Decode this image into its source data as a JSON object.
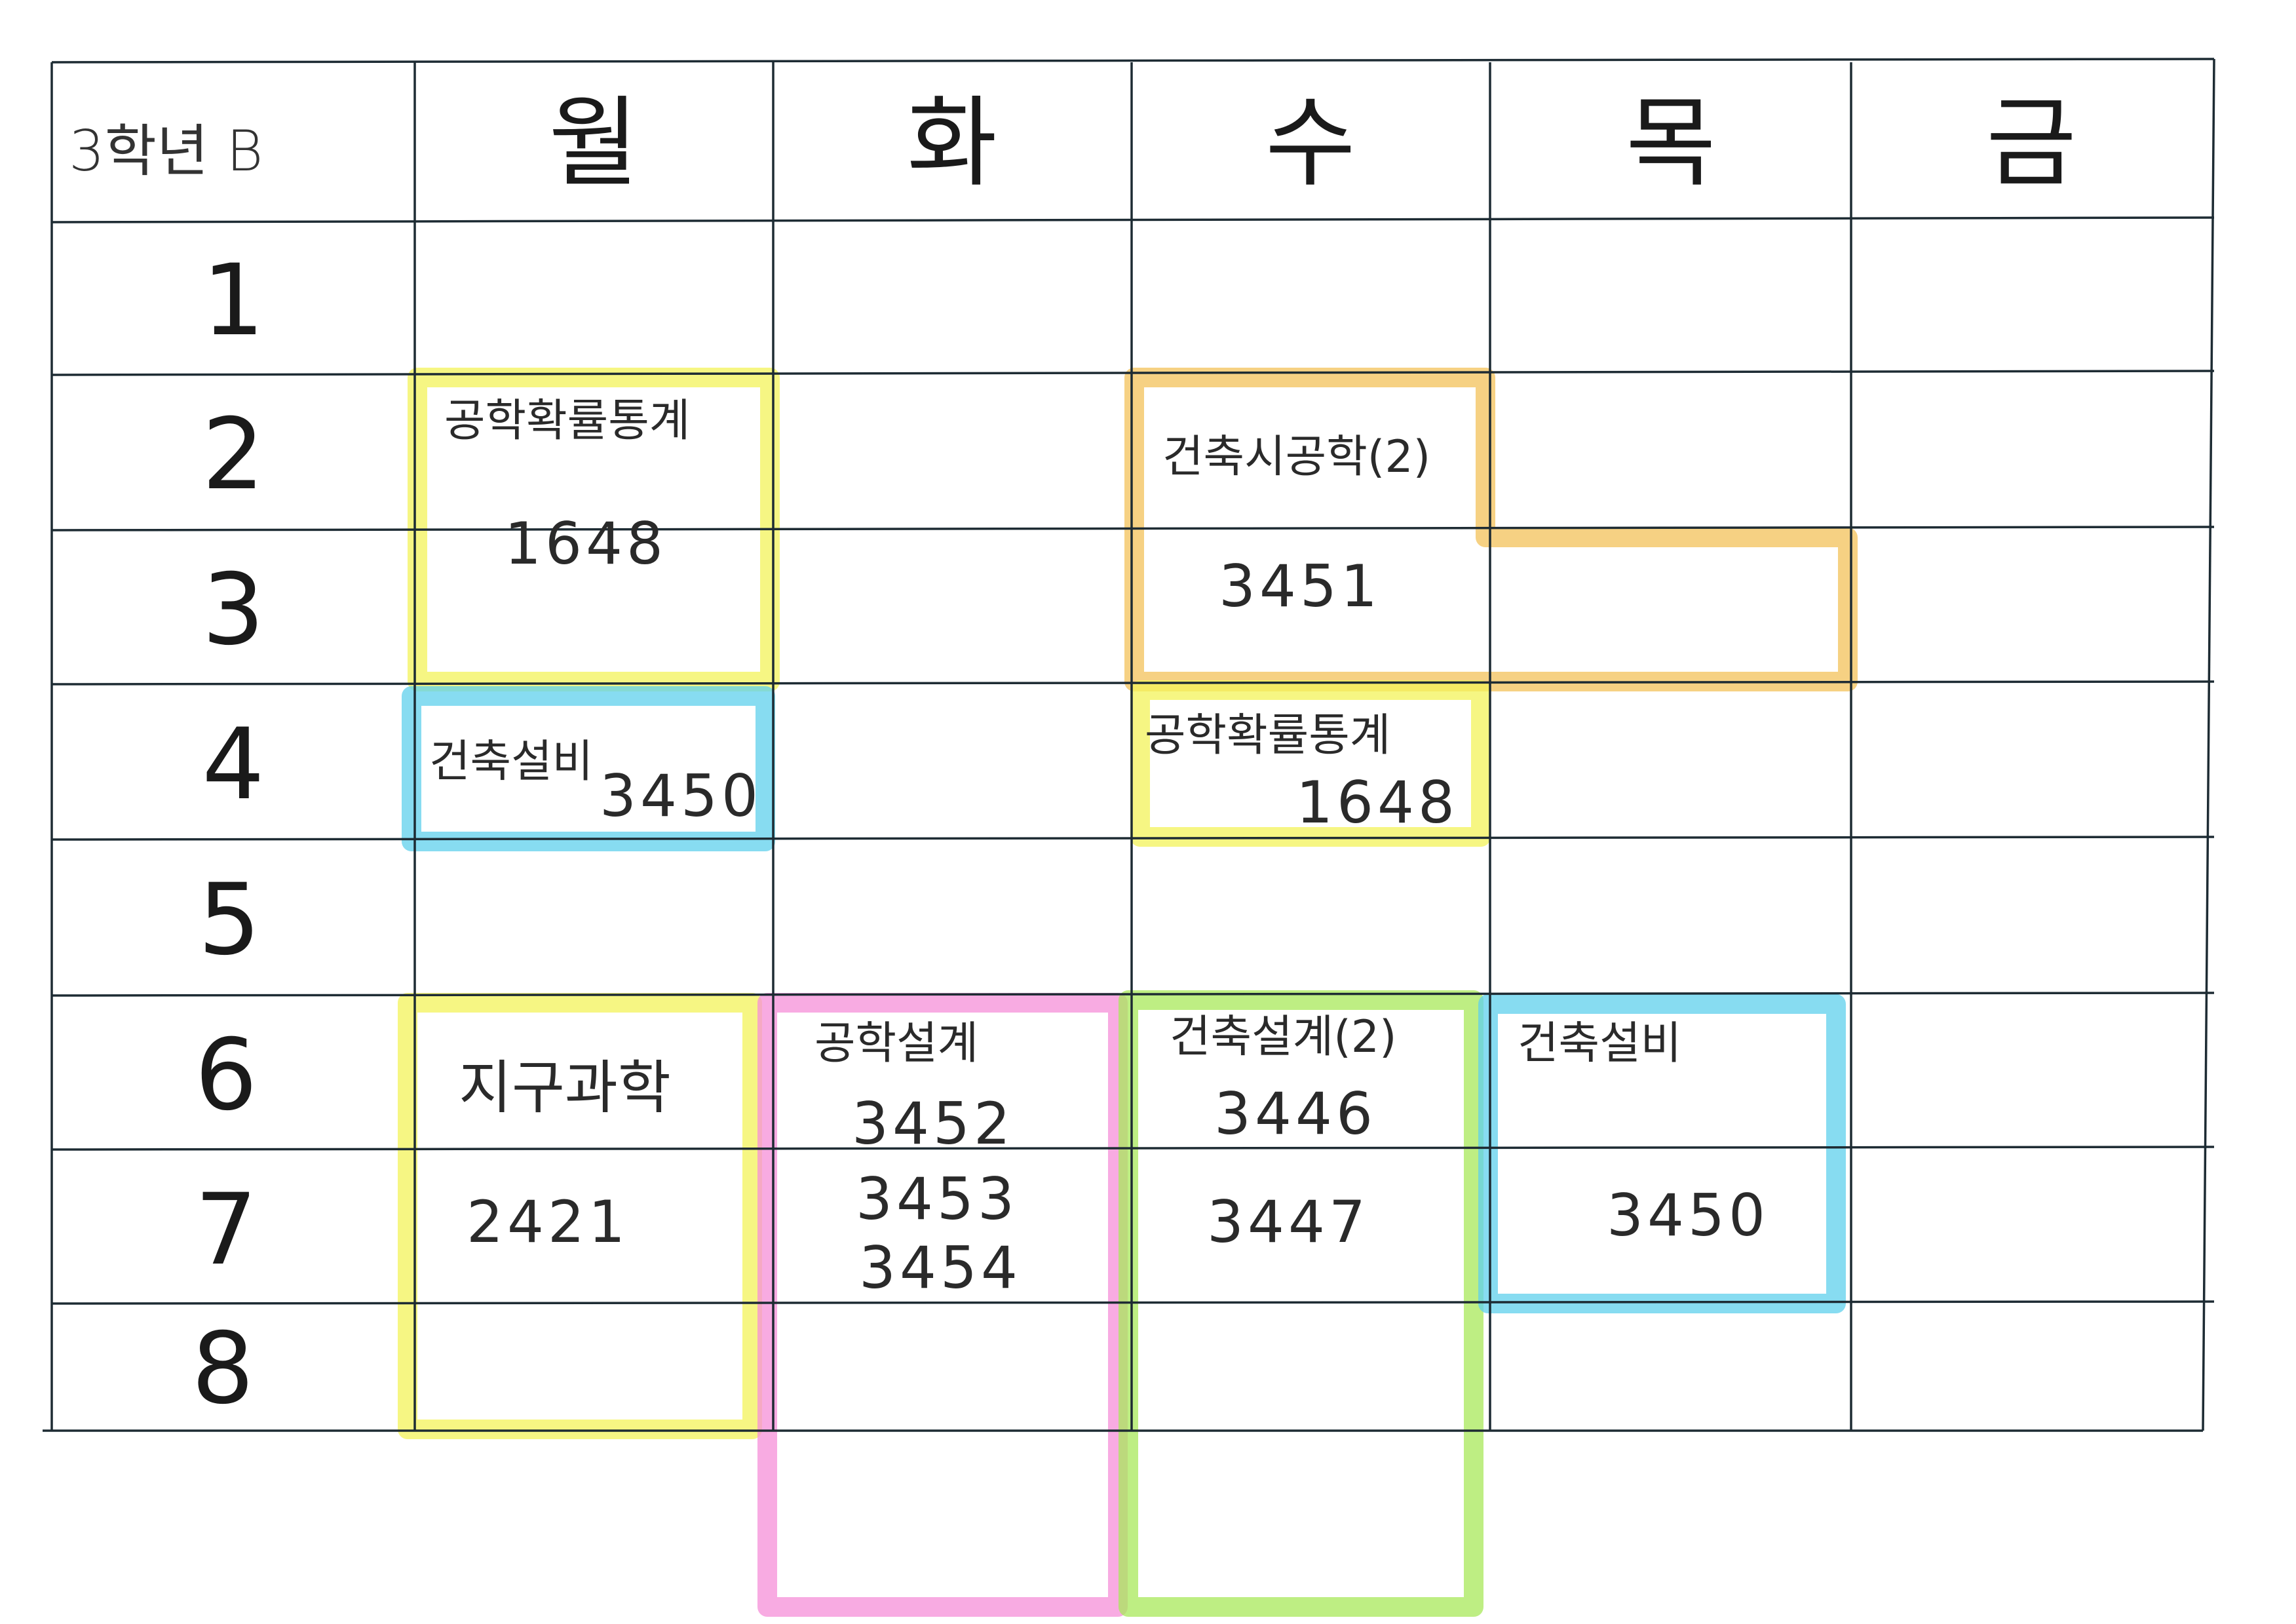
{
  "header": {
    "class_label": "3학년 B"
  },
  "days": [
    "월",
    "화",
    "수",
    "목",
    "금"
  ],
  "periods": [
    "1",
    "2",
    "3",
    "4",
    "5",
    "6",
    "7",
    "8"
  ],
  "colors": {
    "yellow": "#f3f35a",
    "blue": "#5fd0ec",
    "pink": "#f58fd8",
    "green": "#a8e85a",
    "orange": "#f3c25a",
    "grid": "#1d2b33"
  },
  "entries": [
    {
      "day": "월",
      "periods": "2-3",
      "color": "yellow",
      "subject": "공학확률통계",
      "rooms": [
        "1648"
      ]
    },
    {
      "day": "월",
      "periods": "4",
      "color": "blue",
      "subject": "건축설비",
      "rooms": [
        "3450"
      ]
    },
    {
      "day": "월",
      "periods": "6-8",
      "color": "yellow",
      "subject": "지구과학",
      "rooms": [
        "2421"
      ]
    },
    {
      "day": "화",
      "periods": "6-8",
      "color": "pink",
      "subject": "공학설계",
      "rooms": [
        "3452",
        "3453",
        "3454"
      ]
    },
    {
      "day": "수/목",
      "periods": "2-3",
      "color": "orange",
      "subject": "건축시공학(2)",
      "rooms": [
        "3451"
      ]
    },
    {
      "day": "수",
      "periods": "4",
      "color": "yellow",
      "subject": "공학확률통계",
      "rooms": [
        "1648"
      ]
    },
    {
      "day": "수",
      "periods": "6-8",
      "color": "green",
      "subject": "건축설계(2)",
      "rooms": [
        "3446",
        "3447"
      ]
    },
    {
      "day": "목",
      "periods": "6-7",
      "color": "blue",
      "subject": "건축설비",
      "rooms": [
        "3450"
      ]
    }
  ]
}
